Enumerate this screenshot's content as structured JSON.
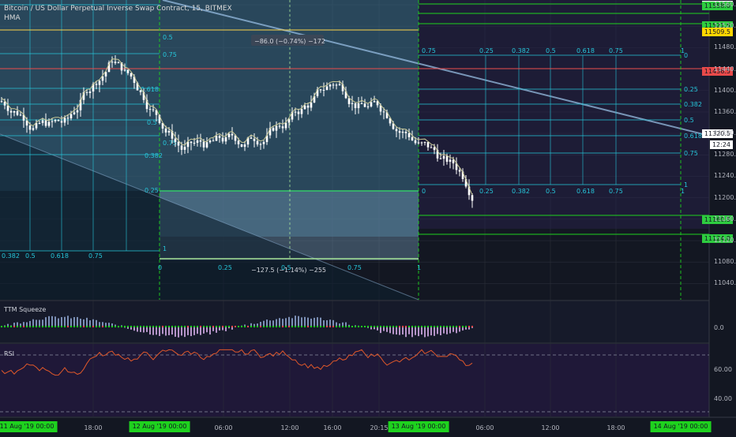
{
  "header": {
    "title": "Bitcoin / US Dollar Perpetual Inverse Swap Contract, 15, BITMEX",
    "indicator": "HMA"
  },
  "price_axis": {
    "ticks": [
      "11560.0",
      "11520.0",
      "11480.0",
      "11440.0",
      "11400.0",
      "11360.0",
      "11320.0",
      "11280.0",
      "11240.0",
      "11200.0",
      "11160.0",
      "11120.0",
      "11080.0",
      "11040.0"
    ],
    "tags": [
      {
        "label": "11560.0",
        "color": "#ffffff",
        "price": 11560
      },
      {
        "label": "11558.0",
        "color": "#2ecc40",
        "price": 11558
      },
      {
        "label": "11521.5",
        "color": "#2ecc40",
        "price": 11521.5
      },
      {
        "label": "11509.5",
        "color": "#ffd700",
        "price": 11509.5
      },
      {
        "label": "11436.5",
        "color": "#e84a4a",
        "price": 11436.5
      },
      {
        "label": "11320.5",
        "color": "#ffffff",
        "price": 11320.5
      },
      {
        "label": "12:24",
        "color": "#ffffff",
        "price": 11300
      },
      {
        "label": "11160.5",
        "color": "#2ecc40",
        "price": 11160.5
      },
      {
        "label": "11124.0",
        "color": "#2ecc40",
        "price": 11124
      }
    ]
  },
  "measure_top": "−86.0 (−0.74%) −172",
  "measure_bottom": "−127.5 (−1.14%) −255",
  "fib_levels_right": [
    "0",
    "0.25",
    "0.382",
    "0.5",
    "0.618",
    "0.75",
    "1"
  ],
  "fib_levels_left": [
    "0.75",
    "0.5",
    "0.618",
    "0.5",
    "0.75",
    "0.382",
    "0.25",
    "1"
  ],
  "fib_bottom_row": [
    "0.382",
    "0.5",
    "0.618",
    "0.75"
  ],
  "fib_mid_row": [
    "0",
    "0.25",
    "0.382",
    "0.5",
    "0.618",
    "0.75",
    "1"
  ],
  "fib_top_row": [
    "0.75",
    "0.25",
    "0.382",
    "0.5",
    "0.618",
    "0.75",
    "1"
  ],
  "squeeze": {
    "title": "TTM Squeeze",
    "zero_label": "0.0"
  },
  "rsi": {
    "title": "RSI",
    "levels": [
      "60.00",
      "40.00"
    ]
  },
  "time_axis": {
    "ticks": [
      "18:00",
      "06:00",
      "12:00",
      "16:00",
      "20:15",
      "06:00",
      "12:00",
      "18:00"
    ],
    "dates": [
      "11 Aug '19   00:00",
      "12 Aug '19   00:00",
      "13 Aug '19   00:00",
      "14 Aug '19   00:00"
    ]
  },
  "colors": {
    "bg": "#131722",
    "grid": "#2a2e39",
    "teal": "#26c6da",
    "green": "#1ed21e",
    "candle": "#ffffff",
    "rsi": "#e0582a",
    "hma": "#c8c896"
  }
}
